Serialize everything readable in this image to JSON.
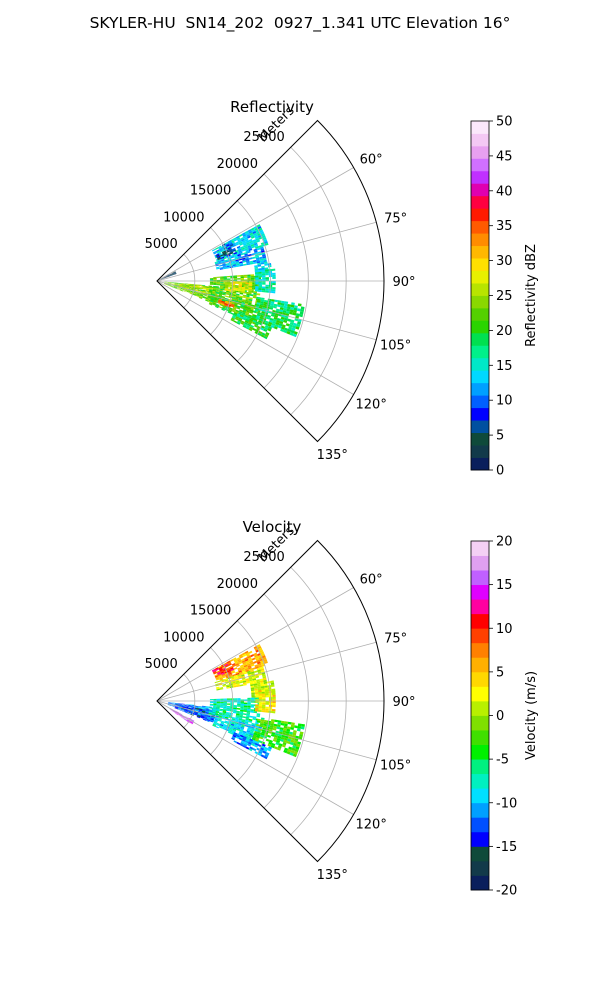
{
  "figure_title": "SKYLER-HU  SN14_202  0927_1.341 UTC Elevation 16°",
  "chart_data": [
    {
      "type": "radar-sector",
      "title": "Reflectivity",
      "range_label": "Meters",
      "range_ticks": [
        5000,
        10000,
        15000,
        20000,
        25000
      ],
      "range_tick_labels": [
        "5000",
        "10000",
        "15000",
        "20000",
        "25000"
      ],
      "azimuth_ticks": [
        60,
        75,
        90,
        105,
        120,
        135
      ],
      "azimuth_tick_labels": [
        "60°",
        "75°",
        "90°",
        "105°",
        "120°",
        "135°"
      ],
      "azimuth_range": [
        45,
        135
      ],
      "range_max": 30000,
      "grid": true,
      "colorbar": {
        "label": "Reflectivity dBZ",
        "min": 0,
        "max": 50,
        "ticks": [
          0,
          5,
          10,
          15,
          20,
          25,
          30,
          35,
          40,
          45,
          50
        ],
        "tick_labels": [
          "0",
          "5",
          "10",
          "15",
          "20",
          "25",
          "30",
          "35",
          "40",
          "45",
          "50"
        ],
        "colors": [
          "#0a1f5c",
          "#123a4a",
          "#0f4a3a",
          "#0050a0",
          "#0000ff",
          "#0060ff",
          "#00a0ff",
          "#00d8ff",
          "#00e8c8",
          "#00f08a",
          "#00e050",
          "#2ad400",
          "#54d000",
          "#8ad800",
          "#b8e400",
          "#e8f000",
          "#ffe000",
          "#ffb800",
          "#ff8c00",
          "#ff5a00",
          "#ff1a00",
          "#ff0040",
          "#e000b0",
          "#c030ff",
          "#d070ff",
          "#e8a0f0",
          "#f4c8f4",
          "#fbe8fb"
        ]
      },
      "echoes": [
        {
          "az": [
            61,
            72
          ],
          "r": [
            8300,
            15500
          ],
          "value": 14
        },
        {
          "az": [
            66,
            71
          ],
          "r": [
            8500,
            11000
          ],
          "value": 6
        },
        {
          "az": [
            61,
            66
          ],
          "r": [
            9800,
            11000
          ],
          "value": 10
        },
        {
          "az": [
            72,
            80
          ],
          "r": [
            8000,
            14500
          ],
          "value": 12
        },
        {
          "az": [
            80,
            86
          ],
          "r": [
            13000,
            15200
          ],
          "value": 13
        },
        {
          "az": [
            95,
            112
          ],
          "r": [
            1000,
            8000
          ],
          "value": 23
        },
        {
          "az": [
            96,
            104
          ],
          "r": [
            3000,
            7000
          ],
          "value": 26
        },
        {
          "az": [
            86,
            108
          ],
          "r": [
            7000,
            13500
          ],
          "value": 22
        },
        {
          "az": [
            90,
            98
          ],
          "r": [
            9000,
            12500
          ],
          "value": 27
        },
        {
          "az": [
            104,
            114
          ],
          "r": [
            7500,
            14000
          ],
          "value": 21
        },
        {
          "az": [
            106,
            110
          ],
          "r": [
            8500,
            10500
          ],
          "value": 34
        },
        {
          "az": [
            99,
            112
          ],
          "r": [
            13500,
            19500
          ],
          "value": 18
        },
        {
          "az": [
            112,
            118
          ],
          "r": [
            11000,
            16000
          ],
          "value": 19
        },
        {
          "az": [
            84,
            96
          ],
          "r": [
            13000,
            15500
          ],
          "value": 16
        },
        {
          "az": [
            62,
            70
          ],
          "r": [
            500,
            2500
          ],
          "value": 3
        }
      ]
    },
    {
      "type": "radar-sector",
      "title": "Velocity",
      "range_label": "Meters",
      "range_ticks": [
        5000,
        10000,
        15000,
        20000,
        25000
      ],
      "range_tick_labels": [
        "5000",
        "10000",
        "15000",
        "20000",
        "25000"
      ],
      "azimuth_ticks": [
        60,
        75,
        90,
        105,
        120,
        135
      ],
      "azimuth_tick_labels": [
        "60°",
        "75°",
        "90°",
        "105°",
        "120°",
        "135°"
      ],
      "azimuth_range": [
        45,
        135
      ],
      "range_max": 30000,
      "grid": true,
      "colorbar": {
        "label": "Velocity (m/s)",
        "min": -20,
        "max": 20,
        "ticks": [
          -20,
          -15,
          -10,
          -5,
          0,
          5,
          10,
          15,
          20
        ],
        "tick_labels": [
          "-20",
          "-15",
          "-10",
          "-5",
          "0",
          "5",
          "10",
          "15",
          "20"
        ],
        "colors": [
          "#0a1f5c",
          "#123a4a",
          "#0f4a3a",
          "#0000ff",
          "#0050ff",
          "#00a0ff",
          "#00e0ff",
          "#00f0c0",
          "#00f080",
          "#00f000",
          "#40e000",
          "#80e000",
          "#b8f000",
          "#ffff00",
          "#ffd800",
          "#ffb000",
          "#ff8000",
          "#ff4000",
          "#ff0000",
          "#ff00a0",
          "#e000ff",
          "#c060ff",
          "#e0a0f0",
          "#f4d0f4"
        ]
      },
      "echoes": [
        {
          "az": [
            61,
            72
          ],
          "r": [
            8300,
            15500
          ],
          "value": 6
        },
        {
          "az": [
            61,
            68
          ],
          "r": [
            8300,
            11000
          ],
          "value": 10
        },
        {
          "az": [
            72,
            80
          ],
          "r": [
            8000,
            14500
          ],
          "value": 2
        },
        {
          "az": [
            80,
            88
          ],
          "r": [
            12500,
            15500
          ],
          "value": 1
        },
        {
          "az": [
            96,
            110
          ],
          "r": [
            1500,
            8000
          ],
          "value": -11
        },
        {
          "az": [
            100,
            112
          ],
          "r": [
            2500,
            7500
          ],
          "value": -13
        },
        {
          "az": [
            88,
            104
          ],
          "r": [
            7000,
            13500
          ],
          "value": -7
        },
        {
          "az": [
            104,
            114
          ],
          "r": [
            8000,
            14000
          ],
          "value": -9
        },
        {
          "az": [
            99,
            112
          ],
          "r": [
            13500,
            19500
          ],
          "value": -3
        },
        {
          "az": [
            112,
            118
          ],
          "r": [
            11000,
            16000
          ],
          "value": -11
        },
        {
          "az": [
            84,
            96
          ],
          "r": [
            13000,
            15500
          ],
          "value": 3
        },
        {
          "az": [
            118,
            124
          ],
          "r": [
            2000,
            5500
          ],
          "value": 16
        }
      ]
    }
  ]
}
